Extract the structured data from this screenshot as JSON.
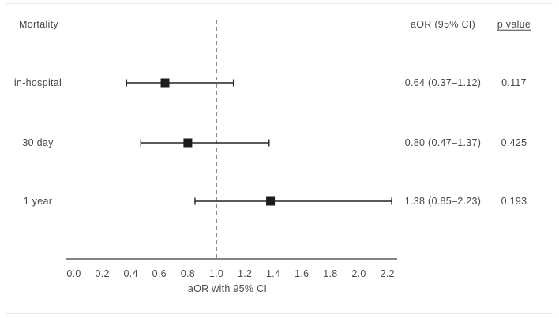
{
  "page": {
    "title": "Mortality"
  },
  "table": {
    "headers": {
      "aor": "aOR (95% CI)",
      "p": "p value"
    },
    "rows": [
      {
        "label": "in-hospital",
        "aor": "0.64 (0.37–1.12)",
        "p": "0.117"
      },
      {
        "label": "30 day",
        "aor": "0.80 (0.47–1.37)",
        "p": "0.425"
      },
      {
        "label": "1 year",
        "aor": "1.38 (0.85–2.23)",
        "p": "0.193"
      }
    ]
  },
  "axis": {
    "label": "aOR with 95% CI"
  },
  "chart_data": {
    "type": "scatter",
    "variant": "forest-plot",
    "title": "Mortality",
    "xlabel": "aOR with 95% CI",
    "xlim": [
      0.0,
      2.2
    ],
    "x_ticks": [
      0.0,
      0.2,
      0.4,
      0.6,
      0.8,
      1.0,
      1.2,
      1.4,
      1.6,
      1.8,
      2.0,
      2.2
    ],
    "reference_line_x": 1.0,
    "reference_line_style": "dashed",
    "grid": false,
    "rows": [
      {
        "label": "in-hospital",
        "estimate": 0.64,
        "ci_lower": 0.37,
        "ci_upper": 1.12,
        "p_value": 0.117
      },
      {
        "label": "30 day",
        "estimate": 0.8,
        "ci_lower": 0.47,
        "ci_upper": 1.37,
        "p_value": 0.425
      },
      {
        "label": "1 year",
        "estimate": 1.38,
        "ci_lower": 0.85,
        "ci_upper": 2.23,
        "p_value": 0.193
      }
    ],
    "colors": {
      "marker": "#1c1c1c",
      "ci_line": "#242424",
      "axis_line": "#5a5a5a",
      "reference_line": "#555555",
      "text": "#474747",
      "rule": "#e8e8e8"
    }
  }
}
